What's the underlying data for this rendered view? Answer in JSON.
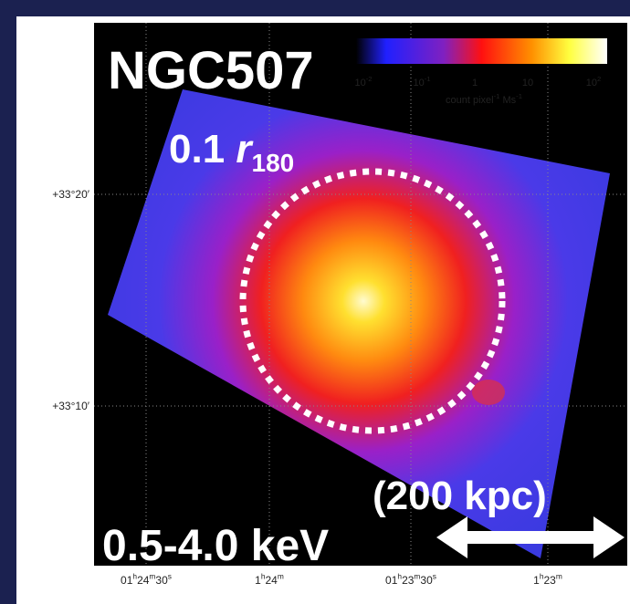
{
  "title": "NGC507",
  "radius_label": {
    "parts": [
      "0.1 ",
      "r",
      "180"
    ]
  },
  "scale_label": "(200 kpc)",
  "energy_label": "0.5-4.0 keV",
  "colorbar": {
    "ticks": [
      {
        "parts": [
          "10",
          "-2"
        ]
      },
      {
        "parts": [
          "10",
          "-1"
        ]
      },
      {
        "parts": [
          "1"
        ]
      },
      {
        "parts": [
          "10"
        ]
      },
      {
        "parts": [
          "10",
          "2"
        ]
      }
    ],
    "unit": {
      "parts": [
        "count pixel",
        "-1",
        " Ms",
        "-1"
      ]
    }
  },
  "y_labels": [
    "+33°20′",
    "+33°10′"
  ],
  "x_labels": [
    {
      "parts": [
        "01",
        "h",
        "24",
        "m",
        "30",
        "s"
      ]
    },
    {
      "parts": [
        "1",
        "h",
        "24",
        "m"
      ]
    },
    {
      "parts": [
        "01",
        "h",
        "23",
        "m",
        "30",
        "s"
      ]
    },
    {
      "parts": [
        "1",
        "h",
        "23",
        "m"
      ]
    }
  ]
}
